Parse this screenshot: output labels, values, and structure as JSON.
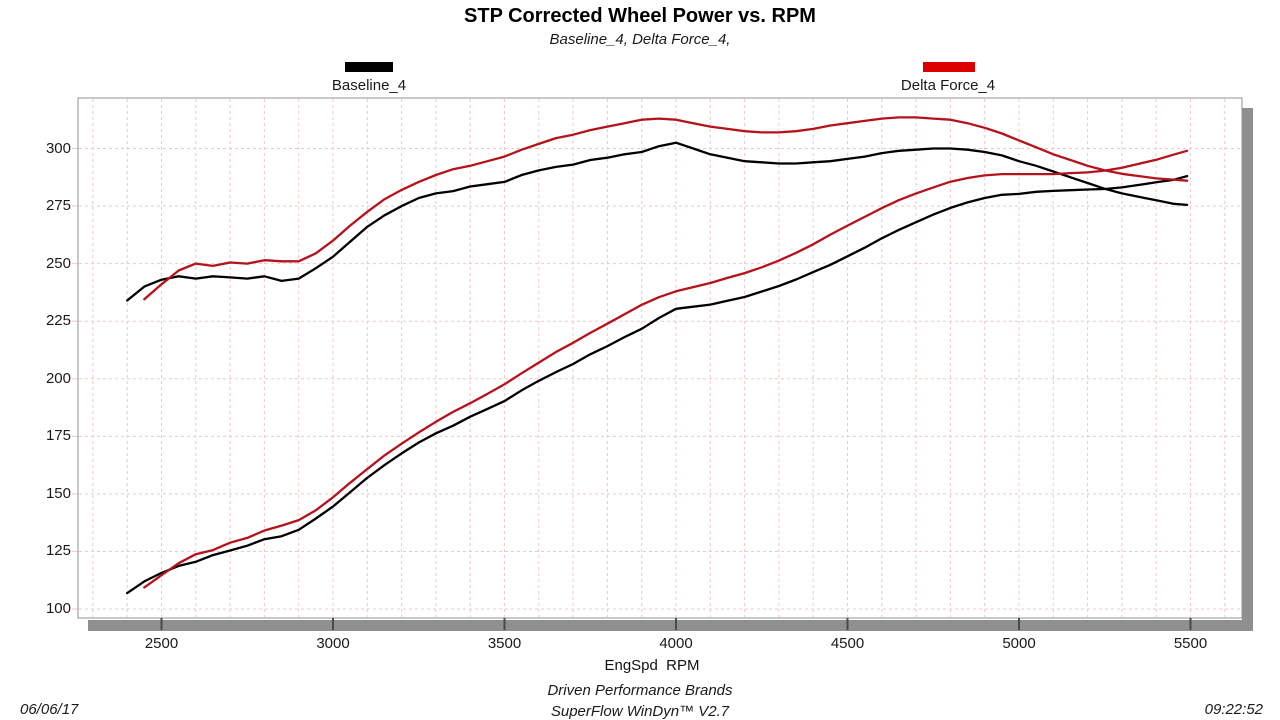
{
  "title": "STP Corrected Wheel Power vs. RPM",
  "subtitle": "Baseline_4, Delta Force_4,",
  "legend": [
    {
      "label": "Baseline_4",
      "swatch_color": "#000000"
    },
    {
      "label": "Delta Force_4",
      "swatch_color": "#dd0000"
    }
  ],
  "footer": {
    "date": "06/06/17",
    "time": "09:22:52",
    "brand": "Driven Performance Brands",
    "software": "SuperFlow WinDyn™ V2.7"
  },
  "colors": {
    "baseline_curve": "#000000",
    "delta_curve": "#b5121b",
    "grid": "#f2c6c6",
    "plot_border": "#929292",
    "shadow": "#8f8f8f",
    "tick_notch": "#4a4a4a",
    "text": "#1a1a1a"
  },
  "chart_data": {
    "type": "line",
    "title": "STP Corrected Wheel Power vs. RPM",
    "subtitle": "Baseline_4, Delta Force_4,",
    "xlabel": "EngSpd  RPM",
    "ylabel": "",
    "xlim": [
      2257,
      5650
    ],
    "ylim": [
      96,
      322
    ],
    "x_ticks": [
      2500,
      3000,
      3500,
      4000,
      4500,
      5000,
      5500
    ],
    "y_ticks": [
      100,
      125,
      150,
      175,
      200,
      225,
      250,
      275,
      300
    ],
    "x_minor_step": 100,
    "grid": "on",
    "legend_position": "top",
    "series": [
      {
        "name": "Baseline_4 torque",
        "run": "Baseline_4",
        "color": "#000000",
        "x": [
          2400,
          2450,
          2500,
          2550,
          2600,
          2650,
          2700,
          2750,
          2800,
          2850,
          2900,
          2950,
          3000,
          3050,
          3100,
          3150,
          3200,
          3250,
          3300,
          3350,
          3400,
          3450,
          3500,
          3550,
          3600,
          3650,
          3700,
          3750,
          3800,
          3850,
          3900,
          3950,
          4000,
          4050,
          4100,
          4150,
          4200,
          4250,
          4300,
          4350,
          4400,
          4450,
          4500,
          4550,
          4600,
          4650,
          4700,
          4750,
          4800,
          4850,
          4900,
          4950,
          5000,
          5050,
          5100,
          5150,
          5200,
          5250,
          5300,
          5350,
          5400,
          5450,
          5490
        ],
        "y": [
          234,
          240,
          243,
          244.5,
          243.5,
          244.5,
          244,
          243.5,
          244.5,
          242.5,
          243.5,
          248,
          253,
          259.5,
          266,
          271,
          275,
          278.5,
          280.5,
          281.5,
          283.5,
          284.5,
          285.5,
          288.5,
          290.5,
          292,
          293,
          295,
          296,
          297.5,
          298.5,
          301,
          302.5,
          300,
          297.5,
          296,
          294.5,
          294,
          293.5,
          293.5,
          294,
          294.5,
          295.5,
          296.5,
          298,
          299,
          299.5,
          300,
          300,
          299.5,
          298.5,
          297,
          294.5,
          292.5,
          290,
          287.5,
          285,
          282.5,
          280.5,
          279,
          277.5,
          276,
          275.5
        ]
      },
      {
        "name": "Baseline_4 power",
        "run": "Baseline_4",
        "color": "#000000",
        "x": [
          2400,
          2450,
          2500,
          2550,
          2600,
          2650,
          2700,
          2750,
          2800,
          2850,
          2900,
          2950,
          3000,
          3050,
          3100,
          3150,
          3200,
          3250,
          3300,
          3350,
          3400,
          3450,
          3500,
          3550,
          3600,
          3650,
          3700,
          3750,
          3800,
          3850,
          3900,
          3950,
          4000,
          4050,
          4100,
          4150,
          4200,
          4250,
          4300,
          4350,
          4400,
          4450,
          4500,
          4550,
          4600,
          4650,
          4700,
          4750,
          4800,
          4850,
          4900,
          4950,
          5000,
          5050,
          5100,
          5150,
          5200,
          5250,
          5300,
          5350,
          5400,
          5450,
          5490
        ],
        "y": [
          106.9,
          112.0,
          115.7,
          118.7,
          120.5,
          123.4,
          125.4,
          127.5,
          130.3,
          131.6,
          134.4,
          139.3,
          144.5,
          150.7,
          157.0,
          162.5,
          167.6,
          172.3,
          176.3,
          179.6,
          183.5,
          186.9,
          190.3,
          195.0,
          199.1,
          202.9,
          206.4,
          210.6,
          214.2,
          218.1,
          221.7,
          226.4,
          230.4,
          231.3,
          232.2,
          233.9,
          235.5,
          237.9,
          240.3,
          243.1,
          246.3,
          249.5,
          253.2,
          256.9,
          261.0,
          264.7,
          268.0,
          271.3,
          274.2,
          276.6,
          278.5,
          279.9,
          280.3,
          281.2,
          281.6,
          281.9,
          282.2,
          282.4,
          283.1,
          284.2,
          285.3,
          286.4,
          288.0
        ]
      },
      {
        "name": "Delta Force_4 torque",
        "run": "Delta Force_4",
        "color": "#b5121b",
        "x": [
          2450,
          2500,
          2550,
          2600,
          2650,
          2700,
          2750,
          2800,
          2850,
          2900,
          2950,
          3000,
          3050,
          3100,
          3150,
          3200,
          3250,
          3300,
          3350,
          3400,
          3450,
          3500,
          3550,
          3600,
          3650,
          3700,
          3750,
          3800,
          3850,
          3900,
          3950,
          4000,
          4050,
          4100,
          4150,
          4200,
          4250,
          4300,
          4350,
          4400,
          4450,
          4500,
          4550,
          4600,
          4650,
          4700,
          4750,
          4800,
          4850,
          4900,
          4950,
          5000,
          5050,
          5100,
          5150,
          5200,
          5250,
          5300,
          5350,
          5400,
          5450,
          5490
        ],
        "y": [
          234.5,
          241,
          247,
          250,
          249,
          250.5,
          250,
          251.5,
          251,
          251,
          254.5,
          260,
          266.5,
          272.5,
          278,
          282,
          285.5,
          288.5,
          291,
          292.5,
          294.5,
          296.5,
          299.5,
          302,
          304.5,
          306,
          308,
          309.5,
          311,
          312.5,
          313,
          312.5,
          311,
          309.5,
          308.5,
          307.5,
          307,
          307,
          307.5,
          308.5,
          310,
          311,
          312,
          313,
          313.5,
          313.5,
          313,
          312.5,
          311,
          309,
          306.5,
          303.5,
          300.5,
          297.5,
          295,
          292.5,
          290.5,
          289,
          288,
          287,
          286.5,
          286
        ]
      },
      {
        "name": "Delta Force_4 power",
        "run": "Delta Force_4",
        "color": "#b5121b",
        "x": [
          2450,
          2500,
          2550,
          2600,
          2650,
          2700,
          2750,
          2800,
          2850,
          2900,
          2950,
          3000,
          3050,
          3100,
          3150,
          3200,
          3250,
          3300,
          3350,
          3400,
          3450,
          3500,
          3550,
          3600,
          3650,
          3700,
          3750,
          3800,
          3850,
          3900,
          3950,
          4000,
          4050,
          4100,
          4150,
          4200,
          4250,
          4300,
          4350,
          4400,
          4450,
          4500,
          4550,
          4600,
          4650,
          4700,
          4750,
          4800,
          4850,
          4900,
          4950,
          5000,
          5050,
          5100,
          5150,
          5200,
          5250,
          5300,
          5350,
          5400,
          5450,
          5490
        ],
        "y": [
          109.4,
          114.7,
          119.9,
          123.8,
          125.6,
          128.8,
          130.9,
          134.1,
          136.2,
          138.6,
          142.9,
          148.5,
          154.8,
          160.8,
          166.7,
          171.8,
          176.7,
          181.3,
          185.6,
          189.4,
          193.4,
          197.6,
          202.4,
          207.0,
          211.6,
          215.6,
          219.9,
          223.9,
          228.0,
          232.1,
          235.4,
          238.0,
          239.8,
          241.6,
          243.8,
          245.9,
          248.4,
          251.3,
          254.7,
          258.4,
          262.6,
          266.5,
          270.3,
          274.1,
          277.6,
          280.5,
          283.1,
          285.6,
          287.2,
          288.3,
          288.9,
          288.9,
          288.9,
          288.9,
          289.3,
          289.6,
          290.4,
          291.6,
          293.4,
          295.1,
          297.3,
          299.0
        ]
      }
    ]
  }
}
